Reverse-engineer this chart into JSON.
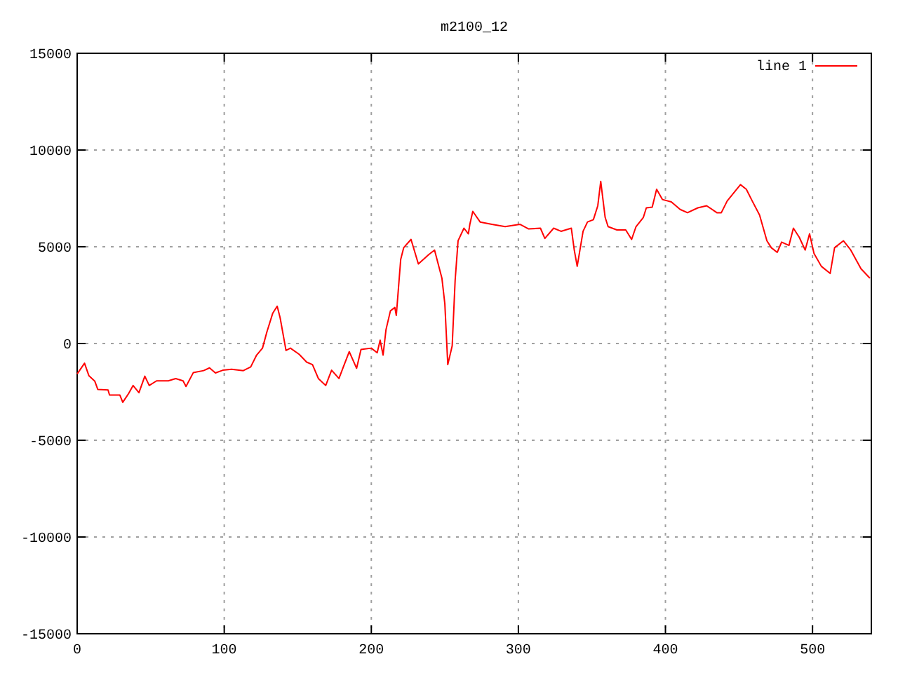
{
  "chart_data": {
    "type": "line",
    "title": "m2100_12",
    "xlim": [
      0,
      540
    ],
    "ylim": [
      -15000,
      15000
    ],
    "xticks": [
      0,
      100,
      200,
      300,
      400,
      500
    ],
    "yticks": [
      -15000,
      -10000,
      -5000,
      0,
      5000,
      10000,
      15000
    ],
    "grid": true,
    "legend": "top right",
    "line_style": "solid",
    "series": [
      {
        "name": "line 1",
        "color": "#ff0000",
        "x": [
          0,
          5,
          8,
          12,
          14,
          21,
          22,
          29,
          31,
          35,
          38,
          42,
          46,
          49,
          54,
          62,
          67,
          72,
          74,
          79,
          86,
          90,
          94,
          99,
          105,
          113,
          118,
          122,
          126,
          129,
          133,
          136,
          138,
          142,
          145,
          151,
          156,
          160,
          164,
          169,
          173,
          178,
          181,
          185,
          190,
          193,
          200,
          204,
          206,
          208,
          210,
          213,
          216,
          217,
          220,
          222,
          227,
          232,
          239,
          243,
          248,
          250,
          252,
          255,
          257,
          259,
          263,
          266,
          267,
          269,
          274,
          282,
          291,
          301,
          307,
          315,
          318,
          324,
          329,
          336,
          338,
          340,
          344,
          347,
          351,
          354,
          356,
          359,
          361,
          367,
          373,
          377,
          380,
          385,
          387,
          391,
          394,
          398,
          404,
          410,
          415,
          422,
          428,
          435,
          438,
          442,
          451,
          455,
          459,
          464,
          469,
          472,
          476,
          479,
          484,
          487,
          491,
          495,
          498,
          501,
          506,
          512,
          515,
          521,
          526,
          533,
          539
        ],
        "values": [
          -1570,
          -1020,
          -1670,
          -1950,
          -2370,
          -2400,
          -2660,
          -2660,
          -3040,
          -2580,
          -2170,
          -2540,
          -1690,
          -2170,
          -1930,
          -1930,
          -1810,
          -1930,
          -2220,
          -1500,
          -1400,
          -1260,
          -1520,
          -1380,
          -1330,
          -1400,
          -1210,
          -600,
          -240,
          600,
          1570,
          1930,
          1330,
          -360,
          -240,
          -560,
          -960,
          -1090,
          -1810,
          -2170,
          -1380,
          -1810,
          -1210,
          -420,
          -1280,
          -310,
          -240,
          -480,
          170,
          -600,
          720,
          1690,
          1860,
          1450,
          4350,
          4950,
          5380,
          4110,
          4590,
          4830,
          3380,
          2050,
          -1090,
          -120,
          3260,
          5310,
          5960,
          5670,
          6160,
          6830,
          6280,
          6160,
          6040,
          6160,
          5920,
          5960,
          5430,
          5960,
          5800,
          5960,
          4830,
          3990,
          5800,
          6280,
          6400,
          7120,
          8380,
          6520,
          6040,
          5870,
          5870,
          5380,
          6040,
          6520,
          7010,
          7050,
          7970,
          7440,
          7320,
          6930,
          6760,
          7010,
          7120,
          6760,
          6760,
          7370,
          8210,
          7970,
          7370,
          6640,
          5310,
          4950,
          4710,
          5240,
          5070,
          5960,
          5490,
          4830,
          5670,
          4660,
          3990,
          3620,
          4950,
          5310,
          4830,
          3860,
          3380
        ]
      }
    ]
  }
}
